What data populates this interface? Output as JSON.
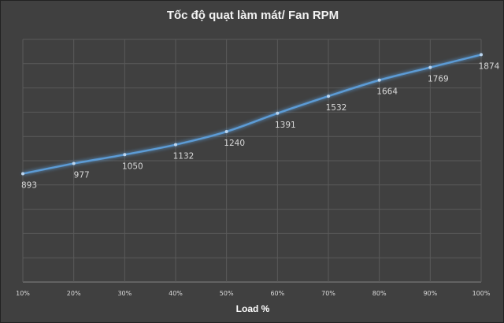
{
  "chart_data": {
    "type": "line",
    "title": "Tốc độ quạt làm mát/ Fan RPM",
    "xlabel": "Load %",
    "ylabel": "",
    "categories": [
      "10%",
      "20%",
      "30%",
      "40%",
      "50%",
      "60%",
      "70%",
      "80%",
      "90%",
      "100%"
    ],
    "series": [
      {
        "name": "Fan RPM",
        "values": [
          893,
          977,
          1050,
          1132,
          1240,
          1391,
          1532,
          1664,
          1769,
          1874
        ]
      }
    ],
    "ylim": [
      0,
      2000
    ],
    "ystep": 200,
    "grid": true,
    "legend": "none",
    "colors": {
      "line": "#5b9bd5",
      "background": "#404040",
      "grid": "#5a5a5a",
      "text": "#d9d9d9"
    }
  }
}
